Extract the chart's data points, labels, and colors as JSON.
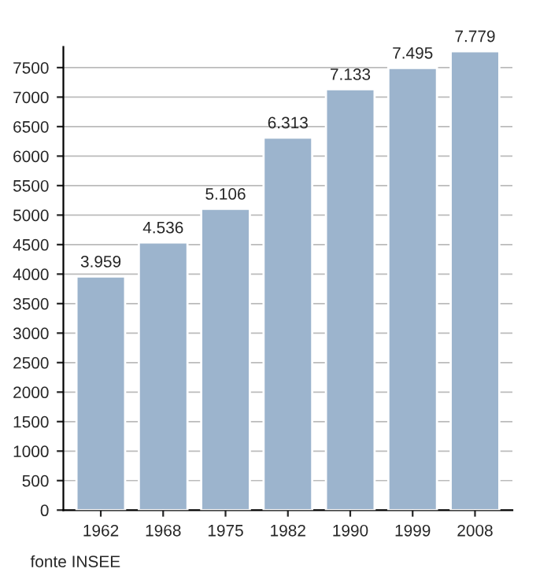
{
  "chart_data": {
    "type": "bar",
    "categories": [
      "1962",
      "1968",
      "1975",
      "1982",
      "1990",
      "1999",
      "2008"
    ],
    "values": [
      3959,
      4536,
      5106,
      6313,
      7133,
      7495,
      7779
    ],
    "value_labels": [
      "3.959",
      "4.536",
      "5.106",
      "6.313",
      "7.133",
      "7.495",
      "7.779"
    ],
    "color": "#9cb4cd",
    "ylim": [
      0,
      7850
    ],
    "yticks": [
      0,
      500,
      1000,
      1500,
      2000,
      2500,
      3000,
      3500,
      4000,
      4500,
      5000,
      5500,
      6000,
      6500,
      7000,
      7500
    ],
    "grid": "y",
    "annotations": [
      "fonte INSEE"
    ]
  }
}
